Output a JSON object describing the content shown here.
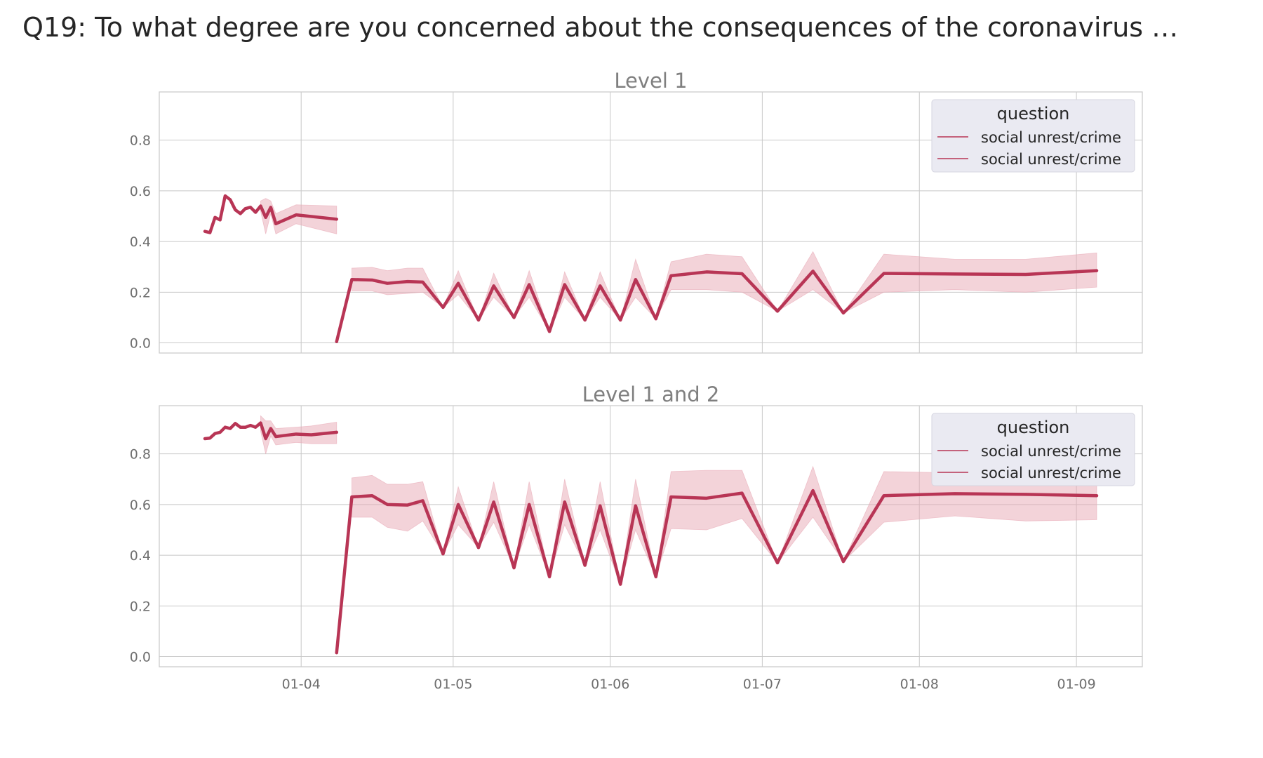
{
  "page_title": "Q19: To what degree are you concerned about the consequences of the coronavirus …",
  "colors": {
    "line": "#b83555",
    "band": "#e8a7b4",
    "grid": "#c8c8c8"
  },
  "chart_data": [
    {
      "type": "line",
      "title": "Level 1",
      "xlabel": "",
      "ylabel": "",
      "xlim": [
        "2020-03-04",
        "2020-09-14"
      ],
      "ylim": [
        -0.04,
        0.99
      ],
      "yticks": [
        "0.0",
        "0.2",
        "0.4",
        "0.6",
        "0.8"
      ],
      "xticks": [
        "01-04",
        "01-05",
        "01-06",
        "01-07",
        "01-08",
        "01-09"
      ],
      "grid": true,
      "legend": {
        "title": "question",
        "position": "top-right",
        "entries": [
          "social unrest/crime",
          "social unrest/crime"
        ]
      },
      "series": [
        {
          "name": "social unrest/crime",
          "points": [
            {
              "x": "2020-03-13",
              "y": 0.44
            },
            {
              "x": "2020-03-14",
              "y": 0.435
            },
            {
              "x": "2020-03-15",
              "y": 0.495
            },
            {
              "x": "2020-03-16",
              "y": 0.485
            },
            {
              "x": "2020-03-17",
              "y": 0.58
            },
            {
              "x": "2020-03-18",
              "y": 0.565
            },
            {
              "x": "2020-03-19",
              "y": 0.525
            },
            {
              "x": "2020-03-20",
              "y": 0.51
            },
            {
              "x": "2020-03-21",
              "y": 0.53
            },
            {
              "x": "2020-03-22",
              "y": 0.535
            },
            {
              "x": "2020-03-23",
              "y": 0.515
            },
            {
              "x": "2020-03-24",
              "y": 0.54
            },
            {
              "x": "2020-03-25",
              "y": 0.495
            },
            {
              "x": "2020-03-26",
              "y": 0.535
            },
            {
              "x": "2020-03-27",
              "y": 0.47
            },
            {
              "x": "2020-03-31",
              "y": 0.505
            },
            {
              "x": "2020-04-08",
              "y": 0.488
            }
          ],
          "band": [
            {
              "x": "2020-03-24",
              "lo": 0.52,
              "hi": 0.56
            },
            {
              "x": "2020-03-25",
              "lo": 0.43,
              "hi": 0.57
            },
            {
              "x": "2020-03-26",
              "lo": 0.51,
              "hi": 0.56
            },
            {
              "x": "2020-03-27",
              "lo": 0.43,
              "hi": 0.51
            },
            {
              "x": "2020-03-31",
              "lo": 0.47,
              "hi": 0.545
            },
            {
              "x": "2020-04-08",
              "lo": 0.43,
              "hi": 0.54
            }
          ]
        },
        {
          "name": "social unrest/crime",
          "points": [
            {
              "x": "2020-04-08",
              "y": 0.005
            },
            {
              "x": "2020-04-11",
              "y": 0.25
            },
            {
              "x": "2020-04-15",
              "y": 0.248
            },
            {
              "x": "2020-04-18",
              "y": 0.235
            },
            {
              "x": "2020-04-22",
              "y": 0.242
            },
            {
              "x": "2020-04-25",
              "y": 0.24
            },
            {
              "x": "2020-04-29",
              "y": 0.14
            },
            {
              "x": "2020-05-02",
              "y": 0.235
            },
            {
              "x": "2020-05-06",
              "y": 0.09
            },
            {
              "x": "2020-05-09",
              "y": 0.225
            },
            {
              "x": "2020-05-13",
              "y": 0.1
            },
            {
              "x": "2020-05-16",
              "y": 0.23
            },
            {
              "x": "2020-05-20",
              "y": 0.045
            },
            {
              "x": "2020-05-23",
              "y": 0.23
            },
            {
              "x": "2020-05-27",
              "y": 0.09
            },
            {
              "x": "2020-05-30",
              "y": 0.225
            },
            {
              "x": "2020-06-03",
              "y": 0.09
            },
            {
              "x": "2020-06-06",
              "y": 0.25
            },
            {
              "x": "2020-06-10",
              "y": 0.095
            },
            {
              "x": "2020-06-13",
              "y": 0.265
            },
            {
              "x": "2020-06-20",
              "y": 0.28
            },
            {
              "x": "2020-06-27",
              "y": 0.273
            },
            {
              "x": "2020-07-04",
              "y": 0.125
            },
            {
              "x": "2020-07-11",
              "y": 0.283
            },
            {
              "x": "2020-07-17",
              "y": 0.118
            },
            {
              "x": "2020-07-25",
              "y": 0.274
            },
            {
              "x": "2020-08-08",
              "y": 0.272
            },
            {
              "x": "2020-08-22",
              "y": 0.27
            },
            {
              "x": "2020-09-05",
              "y": 0.285
            }
          ],
          "band": [
            {
              "x": "2020-04-11",
              "lo": 0.205,
              "hi": 0.295
            },
            {
              "x": "2020-04-15",
              "lo": 0.205,
              "hi": 0.298
            },
            {
              "x": "2020-04-18",
              "lo": 0.19,
              "hi": 0.285
            },
            {
              "x": "2020-04-22",
              "lo": 0.195,
              "hi": 0.295
            },
            {
              "x": "2020-04-25",
              "lo": 0.2,
              "hi": 0.295
            },
            {
              "x": "2020-04-29",
              "lo": 0.14,
              "hi": 0.14
            },
            {
              "x": "2020-05-02",
              "lo": 0.19,
              "hi": 0.285
            },
            {
              "x": "2020-05-06",
              "lo": 0.09,
              "hi": 0.09
            },
            {
              "x": "2020-05-09",
              "lo": 0.18,
              "hi": 0.275
            },
            {
              "x": "2020-05-13",
              "lo": 0.1,
              "hi": 0.1
            },
            {
              "x": "2020-05-16",
              "lo": 0.18,
              "hi": 0.285
            },
            {
              "x": "2020-05-20",
              "lo": 0.045,
              "hi": 0.045
            },
            {
              "x": "2020-05-23",
              "lo": 0.18,
              "hi": 0.28
            },
            {
              "x": "2020-05-27",
              "lo": 0.09,
              "hi": 0.09
            },
            {
              "x": "2020-05-30",
              "lo": 0.18,
              "hi": 0.28
            },
            {
              "x": "2020-06-03",
              "lo": 0.09,
              "hi": 0.09
            },
            {
              "x": "2020-06-06",
              "lo": 0.18,
              "hi": 0.33
            },
            {
              "x": "2020-06-10",
              "lo": 0.095,
              "hi": 0.095
            },
            {
              "x": "2020-06-13",
              "lo": 0.21,
              "hi": 0.32
            },
            {
              "x": "2020-06-20",
              "lo": 0.21,
              "hi": 0.35
            },
            {
              "x": "2020-06-27",
              "lo": 0.2,
              "hi": 0.34
            },
            {
              "x": "2020-07-04",
              "lo": 0.125,
              "hi": 0.125
            },
            {
              "x": "2020-07-11",
              "lo": 0.21,
              "hi": 0.36
            },
            {
              "x": "2020-07-17",
              "lo": 0.118,
              "hi": 0.118
            },
            {
              "x": "2020-07-25",
              "lo": 0.2,
              "hi": 0.35
            },
            {
              "x": "2020-08-08",
              "lo": 0.21,
              "hi": 0.33
            },
            {
              "x": "2020-08-22",
              "lo": 0.2,
              "hi": 0.33
            },
            {
              "x": "2020-09-05",
              "lo": 0.22,
              "hi": 0.355
            }
          ]
        }
      ]
    },
    {
      "type": "line",
      "title": "Level 1 and 2",
      "xlabel": "",
      "ylabel": "",
      "xlim": [
        "2020-03-04",
        "2020-09-14"
      ],
      "ylim": [
        -0.04,
        0.99
      ],
      "yticks": [
        "0.0",
        "0.2",
        "0.4",
        "0.6",
        "0.8"
      ],
      "xticks": [
        "01-04",
        "01-05",
        "01-06",
        "01-07",
        "01-08",
        "01-09"
      ],
      "grid": true,
      "legend": {
        "title": "question",
        "position": "top-right",
        "entries": [
          "social unrest/crime",
          "social unrest/crime"
        ]
      },
      "series": [
        {
          "name": "social unrest/crime",
          "points": [
            {
              "x": "2020-03-13",
              "y": 0.86
            },
            {
              "x": "2020-03-14",
              "y": 0.862
            },
            {
              "x": "2020-03-15",
              "y": 0.88
            },
            {
              "x": "2020-03-16",
              "y": 0.885
            },
            {
              "x": "2020-03-17",
              "y": 0.905
            },
            {
              "x": "2020-03-18",
              "y": 0.9
            },
            {
              "x": "2020-03-19",
              "y": 0.92
            },
            {
              "x": "2020-03-20",
              "y": 0.905
            },
            {
              "x": "2020-03-21",
              "y": 0.905
            },
            {
              "x": "2020-03-22",
              "y": 0.912
            },
            {
              "x": "2020-03-23",
              "y": 0.905
            },
            {
              "x": "2020-03-24",
              "y": 0.922
            },
            {
              "x": "2020-03-25",
              "y": 0.86
            },
            {
              "x": "2020-03-26",
              "y": 0.9
            },
            {
              "x": "2020-03-27",
              "y": 0.868
            },
            {
              "x": "2020-03-31",
              "y": 0.878
            },
            {
              "x": "2020-04-03",
              "y": 0.875
            },
            {
              "x": "2020-04-08",
              "y": 0.885
            }
          ],
          "band": [
            {
              "x": "2020-03-24",
              "lo": 0.89,
              "hi": 0.95
            },
            {
              "x": "2020-03-25",
              "lo": 0.8,
              "hi": 0.93
            },
            {
              "x": "2020-03-26",
              "lo": 0.87,
              "hi": 0.93
            },
            {
              "x": "2020-03-27",
              "lo": 0.835,
              "hi": 0.9
            },
            {
              "x": "2020-03-31",
              "lo": 0.845,
              "hi": 0.905
            },
            {
              "x": "2020-04-03",
              "lo": 0.84,
              "hi": 0.91
            },
            {
              "x": "2020-04-08",
              "lo": 0.84,
              "hi": 0.925
            }
          ]
        },
        {
          "name": "social unrest/crime",
          "points": [
            {
              "x": "2020-04-08",
              "y": 0.015
            },
            {
              "x": "2020-04-11",
              "y": 0.63
            },
            {
              "x": "2020-04-15",
              "y": 0.635
            },
            {
              "x": "2020-04-18",
              "y": 0.6
            },
            {
              "x": "2020-04-22",
              "y": 0.598
            },
            {
              "x": "2020-04-25",
              "y": 0.615
            },
            {
              "x": "2020-04-29",
              "y": 0.405
            },
            {
              "x": "2020-05-02",
              "y": 0.6
            },
            {
              "x": "2020-05-06",
              "y": 0.43
            },
            {
              "x": "2020-05-09",
              "y": 0.61
            },
            {
              "x": "2020-05-13",
              "y": 0.35
            },
            {
              "x": "2020-05-16",
              "y": 0.6
            },
            {
              "x": "2020-05-20",
              "y": 0.315
            },
            {
              "x": "2020-05-23",
              "y": 0.61
            },
            {
              "x": "2020-05-27",
              "y": 0.36
            },
            {
              "x": "2020-05-30",
              "y": 0.595
            },
            {
              "x": "2020-06-03",
              "y": 0.285
            },
            {
              "x": "2020-06-06",
              "y": 0.595
            },
            {
              "x": "2020-06-10",
              "y": 0.315
            },
            {
              "x": "2020-06-13",
              "y": 0.63
            },
            {
              "x": "2020-06-20",
              "y": 0.625
            },
            {
              "x": "2020-06-27",
              "y": 0.645
            },
            {
              "x": "2020-07-04",
              "y": 0.37
            },
            {
              "x": "2020-07-11",
              "y": 0.655
            },
            {
              "x": "2020-07-17",
              "y": 0.375
            },
            {
              "x": "2020-07-25",
              "y": 0.635
            },
            {
              "x": "2020-08-08",
              "y": 0.643
            },
            {
              "x": "2020-08-22",
              "y": 0.64
            },
            {
              "x": "2020-09-05",
              "y": 0.635
            }
          ],
          "band": [
            {
              "x": "2020-04-11",
              "lo": 0.55,
              "hi": 0.705
            },
            {
              "x": "2020-04-15",
              "lo": 0.55,
              "hi": 0.715
            },
            {
              "x": "2020-04-18",
              "lo": 0.51,
              "hi": 0.68
            },
            {
              "x": "2020-04-22",
              "lo": 0.495,
              "hi": 0.68
            },
            {
              "x": "2020-04-25",
              "lo": 0.535,
              "hi": 0.69
            },
            {
              "x": "2020-04-29",
              "lo": 0.405,
              "hi": 0.405
            },
            {
              "x": "2020-05-02",
              "lo": 0.52,
              "hi": 0.67
            },
            {
              "x": "2020-05-06",
              "lo": 0.43,
              "hi": 0.43
            },
            {
              "x": "2020-05-09",
              "lo": 0.53,
              "hi": 0.69
            },
            {
              "x": "2020-05-13",
              "lo": 0.35,
              "hi": 0.35
            },
            {
              "x": "2020-05-16",
              "lo": 0.52,
              "hi": 0.69
            },
            {
              "x": "2020-05-20",
              "lo": 0.315,
              "hi": 0.315
            },
            {
              "x": "2020-05-23",
              "lo": 0.52,
              "hi": 0.7
            },
            {
              "x": "2020-05-27",
              "lo": 0.36,
              "hi": 0.36
            },
            {
              "x": "2020-05-30",
              "lo": 0.5,
              "hi": 0.69
            },
            {
              "x": "2020-06-03",
              "lo": 0.285,
              "hi": 0.285
            },
            {
              "x": "2020-06-06",
              "lo": 0.5,
              "hi": 0.7
            },
            {
              "x": "2020-06-10",
              "lo": 0.315,
              "hi": 0.315
            },
            {
              "x": "2020-06-13",
              "lo": 0.505,
              "hi": 0.73
            },
            {
              "x": "2020-06-20",
              "lo": 0.5,
              "hi": 0.735
            },
            {
              "x": "2020-06-27",
              "lo": 0.545,
              "hi": 0.735
            },
            {
              "x": "2020-07-04",
              "lo": 0.37,
              "hi": 0.37
            },
            {
              "x": "2020-07-11",
              "lo": 0.55,
              "hi": 0.75
            },
            {
              "x": "2020-07-17",
              "lo": 0.375,
              "hi": 0.375
            },
            {
              "x": "2020-07-25",
              "lo": 0.53,
              "hi": 0.73
            },
            {
              "x": "2020-08-08",
              "lo": 0.555,
              "hi": 0.725
            },
            {
              "x": "2020-08-22",
              "lo": 0.535,
              "hi": 0.72
            },
            {
              "x": "2020-09-05",
              "lo": 0.54,
              "hi": 0.72
            }
          ]
        }
      ]
    }
  ]
}
